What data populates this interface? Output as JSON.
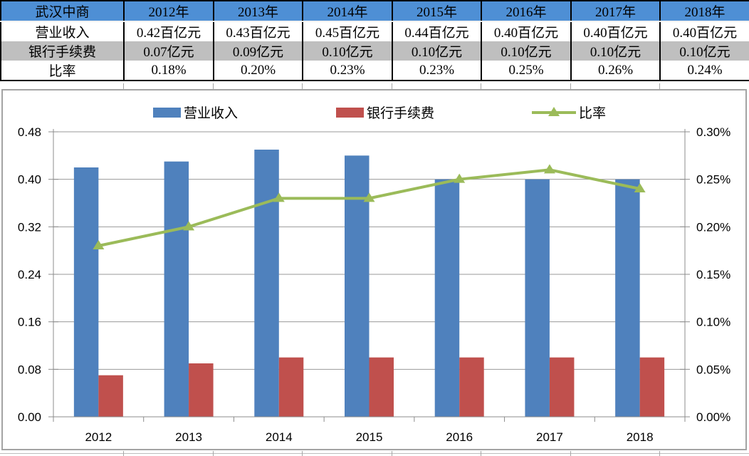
{
  "table": {
    "corner_label": "武汉中商",
    "header": [
      "武汉中商",
      "2012年",
      "2013年",
      "2014年",
      "2015年",
      "2016年",
      "2017年",
      "2018年"
    ],
    "rows": [
      {
        "label": "营业收入",
        "values": [
          "0.42百亿元",
          "0.43百亿元",
          "0.45百亿元",
          "0.44百亿元",
          "0.40百亿元",
          "0.40百亿元",
          "0.40百亿元"
        ]
      },
      {
        "label": "银行手续费",
        "values": [
          "0.07亿元",
          "0.09亿元",
          "0.10亿元",
          "0.10亿元",
          "0.10亿元",
          "0.10亿元",
          "0.10亿元"
        ]
      },
      {
        "label": "比率",
        "values": [
          "0.18%",
          "0.20%",
          "0.23%",
          "0.23%",
          "0.25%",
          "0.26%",
          "0.24%"
        ]
      }
    ]
  },
  "chart_data": {
    "type": "bar",
    "subtype": "combo-bar-line-dual-axis",
    "categories": [
      "2012",
      "2013",
      "2014",
      "2015",
      "2016",
      "2017",
      "2018"
    ],
    "series": [
      {
        "name": "营业收入",
        "kind": "bar",
        "axis": "left",
        "color": "#4F81BD",
        "values": [
          0.42,
          0.43,
          0.45,
          0.44,
          0.4,
          0.4,
          0.4
        ]
      },
      {
        "name": "银行手续费",
        "kind": "bar",
        "axis": "left",
        "color": "#C0504D",
        "values": [
          0.07,
          0.09,
          0.1,
          0.1,
          0.1,
          0.1,
          0.1
        ]
      },
      {
        "name": "比率",
        "kind": "line",
        "axis": "right",
        "color": "#9BBB59",
        "marker": "triangle-up",
        "values": [
          0.18,
          0.2,
          0.23,
          0.23,
          0.25,
          0.26,
          0.24
        ]
      }
    ],
    "title": "",
    "xlabel": "",
    "ylabel": "",
    "left_axis": {
      "min": 0,
      "max": 0.48,
      "step": 0.08,
      "tick_labels": [
        "0.00",
        "0.08",
        "0.16",
        "0.24",
        "0.32",
        "0.40",
        "0.48"
      ]
    },
    "right_axis": {
      "min": 0,
      "max": 0.3,
      "step": 0.05,
      "tick_labels": [
        "0.00%",
        "0.05%",
        "0.10%",
        "0.15%",
        "0.20%",
        "0.25%",
        "0.30%"
      ]
    },
    "grid": true,
    "legend_position": "top",
    "legend": [
      "营业收入",
      "银行手续费",
      "比率"
    ]
  },
  "colors": {
    "table_header_bg": "#4E8FD5",
    "table_alt_row_bg": "#BFBFBF",
    "bar_blue": "#4F81BD",
    "bar_red": "#C0504D",
    "line_green": "#9BBB59",
    "axis_line": "#8C8C8C",
    "gridline": "#9A9A9A",
    "chart_border": "#A3A3A3",
    "table_border": "#000000",
    "text": "#000000"
  }
}
